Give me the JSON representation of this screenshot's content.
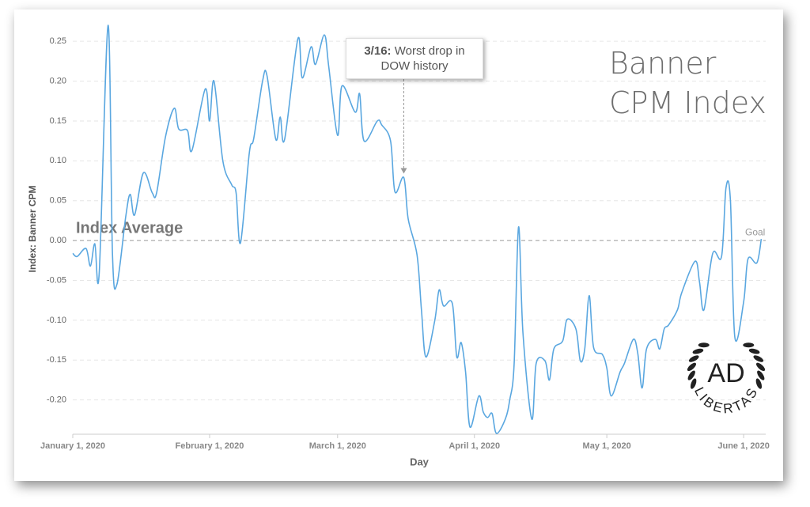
{
  "chart_data": {
    "type": "line",
    "title": "Banner CPM Index",
    "x_label": "Day",
    "y_label": "Index: Banner CPM",
    "x": [
      "2020-01-01",
      "2020-01-02",
      "2020-01-04",
      "2020-01-05",
      "2020-01-06",
      "2020-01-07",
      "2020-01-09",
      "2020-01-10",
      "2020-01-11",
      "2020-01-13",
      "2020-01-14",
      "2020-01-15",
      "2020-01-17",
      "2020-01-19",
      "2020-01-20",
      "2020-01-22",
      "2020-01-24",
      "2020-01-25",
      "2020-01-27",
      "2020-01-28",
      "2020-01-31",
      "2020-02-01",
      "2020-02-02",
      "2020-02-04",
      "2020-02-06",
      "2020-02-07",
      "2020-02-08",
      "2020-02-10",
      "2020-02-11",
      "2020-02-13",
      "2020-02-14",
      "2020-02-16",
      "2020-02-17",
      "2020-02-18",
      "2020-02-21",
      "2020-02-22",
      "2020-02-24",
      "2020-02-25",
      "2020-02-27",
      "2020-02-28",
      "2020-03-01",
      "2020-03-02",
      "2020-03-05",
      "2020-03-06",
      "2020-03-07",
      "2020-03-10",
      "2020-03-11",
      "2020-03-13",
      "2020-03-14",
      "2020-03-16",
      "2020-03-17",
      "2020-03-19",
      "2020-03-20",
      "2020-03-21",
      "2020-03-23",
      "2020-03-24",
      "2020-03-25",
      "2020-03-27",
      "2020-03-28",
      "2020-03-29",
      "2020-03-30",
      "2020-03-31",
      "2020-04-02",
      "2020-04-03",
      "2020-04-04",
      "2020-04-05",
      "2020-04-06",
      "2020-04-08",
      "2020-04-09",
      "2020-04-10",
      "2020-04-11",
      "2020-04-12",
      "2020-04-14",
      "2020-04-15",
      "2020-04-17",
      "2020-04-18",
      "2020-04-19",
      "2020-04-21",
      "2020-04-22",
      "2020-04-24",
      "2020-04-25",
      "2020-04-26",
      "2020-04-27",
      "2020-04-28",
      "2020-04-30",
      "2020-05-01",
      "2020-05-02",
      "2020-05-04",
      "2020-05-05",
      "2020-05-07",
      "2020-05-08",
      "2020-05-09",
      "2020-05-10",
      "2020-05-12",
      "2020-05-13",
      "2020-05-14",
      "2020-05-15",
      "2020-05-17",
      "2020-05-18",
      "2020-05-21",
      "2020-05-22",
      "2020-05-23",
      "2020-05-25",
      "2020-05-27",
      "2020-05-28",
      "2020-05-29",
      "2020-05-30",
      "2020-06-01",
      "2020-06-02",
      "2020-06-04",
      "2020-06-05"
    ],
    "series": [
      {
        "name": "Banner CPM Index",
        "color": "#5aa7e0",
        "values": [
          -0.016,
          -0.02,
          -0.01,
          -0.032,
          -0.004,
          -0.04,
          0.27,
          -0.018,
          -0.055,
          0.03,
          0.058,
          0.032,
          0.085,
          0.06,
          0.06,
          0.13,
          0.166,
          0.14,
          0.138,
          0.113,
          0.19,
          0.15,
          0.2,
          0.1,
          0.07,
          0.06,
          -0.003,
          0.11,
          0.128,
          0.2,
          0.207,
          0.127,
          0.155,
          0.127,
          0.253,
          0.204,
          0.243,
          0.221,
          0.258,
          0.218,
          0.132,
          0.194,
          0.161,
          0.184,
          0.125,
          0.15,
          0.145,
          0.125,
          0.061,
          0.079,
          0.027,
          -0.018,
          -0.087,
          -0.146,
          -0.101,
          -0.062,
          -0.082,
          -0.079,
          -0.146,
          -0.128,
          -0.165,
          -0.234,
          -0.195,
          -0.215,
          -0.222,
          -0.217,
          -0.242,
          -0.224,
          -0.2,
          -0.155,
          0.017,
          -0.116,
          -0.224,
          -0.154,
          -0.151,
          -0.175,
          -0.136,
          -0.126,
          -0.099,
          -0.111,
          -0.151,
          -0.136,
          -0.069,
          -0.134,
          -0.143,
          -0.16,
          -0.195,
          -0.165,
          -0.154,
          -0.124,
          -0.141,
          -0.185,
          -0.136,
          -0.124,
          -0.136,
          -0.111,
          -0.106,
          -0.087,
          -0.065,
          -0.026,
          -0.052,
          -0.087,
          -0.016,
          -0.02,
          0.066,
          0.051,
          -0.121,
          -0.077,
          -0.023,
          -0.028,
          0.002
        ]
      }
    ],
    "xlim": [
      "2020-01-01",
      "2020-06-06"
    ],
    "xticks": [
      {
        "value": "2020-01-01",
        "label": "January 1, 2020"
      },
      {
        "value": "2020-02-01",
        "label": "February 1, 2020"
      },
      {
        "value": "2020-03-01",
        "label": "March 1, 2020"
      },
      {
        "value": "2020-04-01",
        "label": "April 1, 2020"
      },
      {
        "value": "2020-05-01",
        "label": "May 1, 2020"
      },
      {
        "value": "2020-06-01",
        "label": "June 1, 2020"
      }
    ],
    "ylim": [
      -0.243,
      0.272
    ],
    "yticks": [
      {
        "value": -0.2,
        "label": "-0.20"
      },
      -0.15,
      {
        "value": -0.1,
        "label": "-0.10"
      },
      -0.05,
      {
        "value": 0,
        "label": "0.00"
      },
      0.05,
      {
        "value": 0.1,
        "label": "0.10"
      },
      0.15,
      {
        "value": 0.2,
        "label": "0.20"
      },
      0.25
    ],
    "grid": true,
    "reference_line": {
      "value": 0,
      "label": "Goal",
      "side_label": "Index Average"
    },
    "annotation": {
      "x": "2020-03-16",
      "title": "3/16:",
      "text": "Worst drop in DOW history"
    },
    "logo": {
      "initials": "AD",
      "name": "LIBERTAS"
    }
  }
}
